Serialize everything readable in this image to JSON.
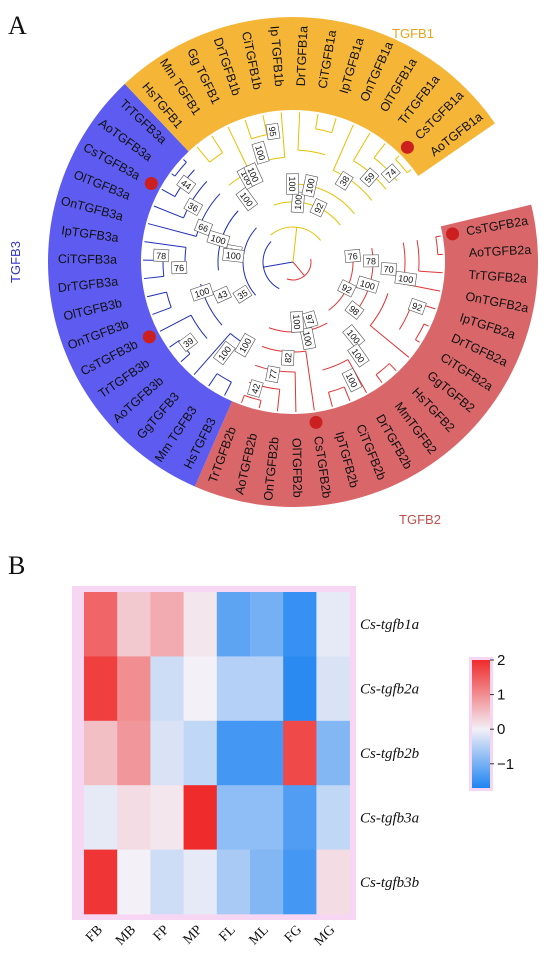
{
  "panel_a": {
    "label": "A",
    "groups": [
      {
        "name": "TGFB1",
        "color": "#f5b638",
        "text_color": "#e8a317"
      },
      {
        "name": "TGFB2",
        "color": "#d9676a",
        "text_color": "#c0504d"
      },
      {
        "name": "TGFB3",
        "color": "#5e5cf0",
        "text_color": "#3333cc"
      }
    ],
    "leaves": [
      {
        "name": "CsTGFB2a",
        "group": "TGFB2",
        "mark": true
      },
      {
        "name": "AoTGFB2a",
        "group": "TGFB2",
        "mark": false
      },
      {
        "name": "TrTGFB2a",
        "group": "TGFB2",
        "mark": false
      },
      {
        "name": "OnTGFB2a",
        "group": "TGFB2",
        "mark": false
      },
      {
        "name": "IpTGFB2a",
        "group": "TGFB2",
        "mark": false
      },
      {
        "name": "DrTGFB2a",
        "group": "TGFB2",
        "mark": false
      },
      {
        "name": "CiTGFB2a",
        "group": "TGFB2",
        "mark": false
      },
      {
        "name": "GgTGFB2",
        "group": "TGFB2",
        "mark": false
      },
      {
        "name": "HsTGFB2",
        "group": "TGFB2",
        "mark": false
      },
      {
        "name": "MmTGFB2",
        "group": "TGFB2",
        "mark": false
      },
      {
        "name": "DrTGFB2b",
        "group": "TGFB2",
        "mark": false
      },
      {
        "name": "CiTGFB2b",
        "group": "TGFB2",
        "mark": false
      },
      {
        "name": "IpTGFB2b",
        "group": "TGFB2",
        "mark": false
      },
      {
        "name": "CsTGFB2b",
        "group": "TGFB2",
        "mark": true
      },
      {
        "name": "OlTGFB2b",
        "group": "TGFB2",
        "mark": false
      },
      {
        "name": "OnTGFB2b",
        "group": "TGFB2",
        "mark": false
      },
      {
        "name": "AoTGFB2b",
        "group": "TGFB2",
        "mark": false
      },
      {
        "name": "TrTGFB2b",
        "group": "TGFB2",
        "mark": false
      },
      {
        "name": "HsTGFB3",
        "group": "TGFB3",
        "mark": false
      },
      {
        "name": "Mm TGFB3",
        "group": "TGFB3",
        "mark": false
      },
      {
        "name": "GgTGFB3",
        "group": "TGFB3",
        "mark": false
      },
      {
        "name": "AoTGFB3b",
        "group": "TGFB3",
        "mark": false
      },
      {
        "name": "TrTGFB3b",
        "group": "TGFB3",
        "mark": false
      },
      {
        "name": "CsTGFB3b",
        "group": "TGFB3",
        "mark": true
      },
      {
        "name": "OnTGFB3b",
        "group": "TGFB3",
        "mark": false
      },
      {
        "name": "OlTGFB3b",
        "group": "TGFB3",
        "mark": false
      },
      {
        "name": "DrTGFB3a",
        "group": "TGFB3",
        "mark": false
      },
      {
        "name": "CiTGFB3a",
        "group": "TGFB3",
        "mark": false
      },
      {
        "name": "IpTGFB3a",
        "group": "TGFB3",
        "mark": false
      },
      {
        "name": "OnTGFB3a",
        "group": "TGFB3",
        "mark": false
      },
      {
        "name": "OlTGFB3a",
        "group": "TGFB3",
        "mark": false
      },
      {
        "name": "CsTGFB3a",
        "group": "TGFB3",
        "mark": true
      },
      {
        "name": "AoTGFB3a",
        "group": "TGFB3",
        "mark": false
      },
      {
        "name": "TrTGFB3a",
        "group": "TGFB3",
        "mark": false
      },
      {
        "name": "HsTGFB1",
        "group": "TGFB1",
        "mark": false
      },
      {
        "name": "Mm TGFB1",
        "group": "TGFB1",
        "mark": false
      },
      {
        "name": "Gg TGFB1",
        "group": "TGFB1",
        "mark": false
      },
      {
        "name": "DrTGFB1b",
        "group": "TGFB1",
        "mark": false
      },
      {
        "name": "CiTGFB1b",
        "group": "TGFB1",
        "mark": false
      },
      {
        "name": "Ip TGFB1b",
        "group": "TGFB1",
        "mark": false
      },
      {
        "name": "DrTGFB1a",
        "group": "TGFB1",
        "mark": false
      },
      {
        "name": "CiTGFB1a",
        "group": "TGFB1",
        "mark": false
      },
      {
        "name": "IpTGFB1a",
        "group": "TGFB1",
        "mark": false
      },
      {
        "name": "OnTGFB1a",
        "group": "TGFB1",
        "mark": false
      },
      {
        "name": "OlTGFB1a",
        "group": "TGFB1",
        "mark": false
      },
      {
        "name": "TrTGFB1a",
        "group": "TGFB1",
        "mark": false
      },
      {
        "name": "CsTGFB1a",
        "group": "TGFB1",
        "mark": true
      },
      {
        "name": "AoTGFB1a",
        "group": "TGFB1",
        "mark": false
      }
    ],
    "bootstrap": [
      {
        "value": "76",
        "group": "TGFB2",
        "leaf": 0.6
      },
      {
        "value": "78",
        "group": "TGFB2",
        "leaf": 1.3
      },
      {
        "value": "70",
        "group": "TGFB2",
        "leaf": 2.0
      },
      {
        "value": "100",
        "group": "TGFB2",
        "leaf": 2.6
      },
      {
        "value": "92",
        "group": "TGFB2",
        "leaf": 4.2
      },
      {
        "value": "92",
        "group": "TGFB2",
        "leaf": 5.1
      },
      {
        "value": "100",
        "group": "TGFB2",
        "leaf": 3.8
      },
      {
        "value": "100",
        "group": "TGFB2",
        "leaf": 8.6
      },
      {
        "value": "100",
        "group": "TGFB2",
        "leaf": 9.2
      },
      {
        "value": "100",
        "group": "TGFB2",
        "leaf": 10.4
      },
      {
        "value": "97",
        "group": "TGFB2",
        "leaf": 11.8
      },
      {
        "value": "100",
        "group": "TGFB2",
        "leaf": 12.6
      },
      {
        "value": "82",
        "group": "TGFB2",
        "leaf": 14.6
      },
      {
        "value": "77",
        "group": "TGFB2",
        "leaf": 15.6
      },
      {
        "value": "42",
        "group": "TGFB2",
        "leaf": 16.5
      },
      {
        "value": "100",
        "group": "TGFB2",
        "leaf": 13.6
      },
      {
        "value": "98",
        "group": "TGFB2",
        "leaf": 6.8
      },
      {
        "value": "100",
        "group": "TGFB3",
        "leaf": 18.4
      },
      {
        "value": "100",
        "group": "TGFB3",
        "leaf": 19.4
      },
      {
        "value": "39",
        "group": "TGFB3",
        "leaf": 21.6
      },
      {
        "value": "35",
        "group": "TGFB3",
        "leaf": 22.3
      },
      {
        "value": "43",
        "group": "TGFB3",
        "leaf": 23.4
      },
      {
        "value": "100",
        "group": "TGFB3",
        "leaf": 24.3
      },
      {
        "value": "76",
        "group": "TGFB3",
        "leaf": 26.5
      },
      {
        "value": "78",
        "group": "TGFB3",
        "leaf": 27.3
      },
      {
        "value": "98",
        "group": "TGFB3",
        "leaf": 28.3
      },
      {
        "value": "100",
        "group": "TGFB3",
        "leaf": 29.3
      },
      {
        "value": "66",
        "group": "TGFB3",
        "leaf": 29.9
      },
      {
        "value": "36",
        "group": "TGFB3",
        "leaf": 31.0
      },
      {
        "value": "44",
        "group": "TGFB3",
        "leaf": 32.0
      },
      {
        "value": "100",
        "group": "TGFB3",
        "leaf": 27.8
      },
      {
        "value": "100",
        "group": "TGFB1",
        "leaf": 34.5
      },
      {
        "value": "100",
        "group": "TGFB1",
        "leaf": 35.6
      },
      {
        "value": "100",
        "group": "TGFB1",
        "leaf": 37.3
      },
      {
        "value": "95",
        "group": "TGFB1",
        "leaf": 38.4
      },
      {
        "value": "100",
        "group": "TGFB1",
        "leaf": 40.3
      },
      {
        "value": "100",
        "group": "TGFB1",
        "leaf": 41.4
      },
      {
        "value": "38",
        "group": "TGFB1",
        "leaf": 44.2
      },
      {
        "value": "59",
        "group": "TGFB1",
        "leaf": 45.6
      },
      {
        "value": "74",
        "group": "TGFB1",
        "leaf": 46.4
      },
      {
        "value": "92",
        "group": "TGFB1",
        "leaf": 43.2
      },
      {
        "value": "100",
        "group": "TGFB1",
        "leaf": 39.6
      },
      {
        "value": "100",
        "group": "TGFB1",
        "leaf": 36.2
      }
    ]
  },
  "panel_b": {
    "label": "B",
    "columns": [
      "FB",
      "MB",
      "FP",
      "MP",
      "FL",
      "ML",
      "FG",
      "MG"
    ],
    "rows": [
      "Cs-tgfb1a",
      "Cs-tgfb2a",
      "Cs-tgfb2b",
      "Cs-tgfb3a",
      "Cs-tgfb3b"
    ],
    "values": [
      [
        1.4,
        0.4,
        0.7,
        0.1,
        -1.2,
        -1.0,
        -1.5,
        -0.1
      ],
      [
        1.8,
        1.0,
        -0.3,
        0.0,
        -0.5,
        -0.5,
        -1.6,
        -0.2
      ],
      [
        0.5,
        0.9,
        -0.2,
        -0.4,
        -1.4,
        -1.4,
        1.7,
        -0.9
      ],
      [
        -0.1,
        0.2,
        0.1,
        2.0,
        -0.8,
        -0.8,
        -1.3,
        -0.4
      ],
      [
        1.9,
        0.0,
        -0.3,
        -0.1,
        -0.6,
        -0.9,
        -1.4,
        0.2
      ]
    ],
    "colorbar": {
      "ticks": [
        2,
        1,
        0,
        -1
      ],
      "tick_labels": [
        "2",
        "1",
        "0",
        "−1"
      ],
      "min": -1.7,
      "max": 2.0,
      "color_low": "#1e84f2",
      "color_mid": "#f3f0f7",
      "color_high": "#ef2b2b"
    }
  }
}
